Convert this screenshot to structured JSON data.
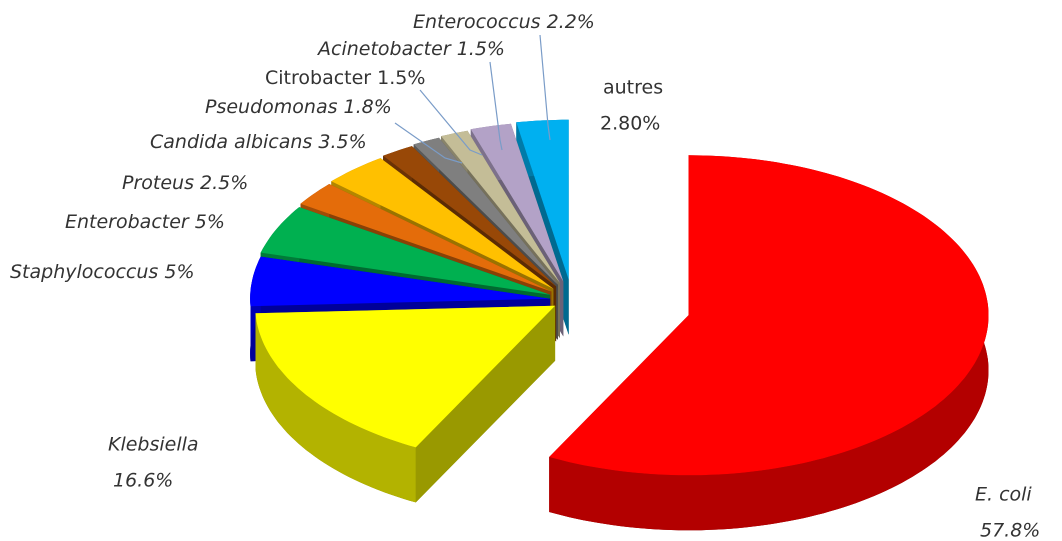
{
  "chart_data": {
    "type": "pie3d",
    "categories": [
      "E. coli",
      "Klebsiella",
      "Staphylococcus",
      "Enterobacter",
      "Proteus",
      "Candida albicans",
      "Pseudomonas",
      "Citrobacter",
      "Acinetobacter",
      "Enterococcus",
      "autres"
    ],
    "values": [
      57.8,
      16.6,
      5,
      5,
      2.5,
      3.5,
      1.8,
      1.5,
      1.5,
      2.2,
      2.8
    ],
    "value_labels": [
      "57.8%",
      "16.6%",
      "5%",
      "5%",
      "2.5%",
      "3.5%",
      "1.8%",
      "1.5%",
      "1.5%",
      "2.2%",
      "2.80%"
    ],
    "colors": [
      "#ff0000",
      "#ffff00",
      "#0000ff",
      "#00b050",
      "#e46c0a",
      "#ffc000",
      "#984807",
      "#7f7f7f",
      "#c4bd97",
      "#b3a2c7",
      "#00b0f0"
    ]
  }
}
